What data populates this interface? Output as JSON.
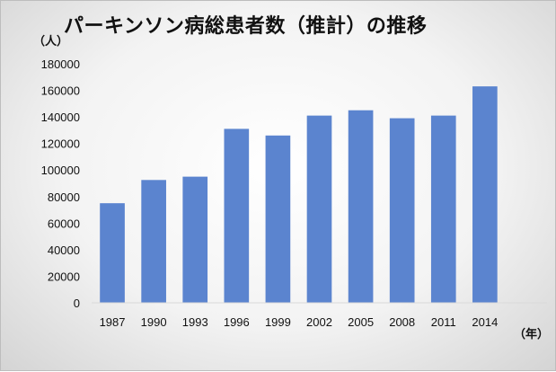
{
  "chart_data": {
    "type": "bar",
    "title": "パーキンソン病総患者数（推計）の推移",
    "ylabel": "（人）",
    "xlabel": "（年）",
    "categories": [
      "1987",
      "1990",
      "1993",
      "1996",
      "1999",
      "2002",
      "2005",
      "2008",
      "2011",
      "2014"
    ],
    "values": [
      75000,
      92500,
      95000,
      131000,
      126000,
      141000,
      145000,
      139000,
      141000,
      163000
    ],
    "ylim": [
      0,
      180000
    ],
    "yticks": [
      "0",
      "20000",
      "40000",
      "60000",
      "80000",
      "100000",
      "120000",
      "140000",
      "160000",
      "180000"
    ],
    "grid": false,
    "bar_color": "#5b84cf"
  }
}
